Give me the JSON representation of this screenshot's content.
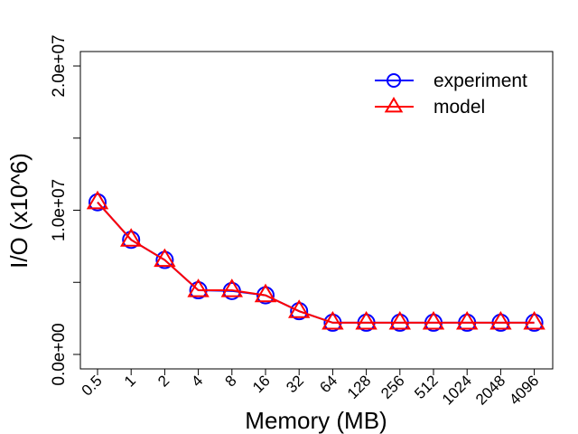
{
  "chart_data": {
    "type": "line",
    "xlabel": "Memory (MB)",
    "ylabel": "I/O (x10^6)",
    "categories": [
      "0.5",
      "1",
      "2",
      "4",
      "8",
      "16",
      "32",
      "64",
      "128",
      "256",
      "512",
      "1024",
      "2048",
      "4096"
    ],
    "ylim": [
      -1000000,
      21000000
    ],
    "yticks": [
      0,
      5000000,
      10000000,
      15000000,
      20000000
    ],
    "ytick_labels": [
      "0.0e+00",
      "",
      "1.0e+07",
      "",
      "2.0e+07"
    ],
    "grid": false,
    "legend_position": "top-right",
    "series": [
      {
        "name": "experiment",
        "color": "#0000ff",
        "marker": "circle",
        "values": [
          10550000,
          7950000,
          6550000,
          4450000,
          4400000,
          4100000,
          3000000,
          2200000,
          2200000,
          2200000,
          2200000,
          2200000,
          2200000,
          2200000
        ]
      },
      {
        "name": "model",
        "color": "#ff0000",
        "marker": "triangle",
        "values": [
          10550000,
          7950000,
          6550000,
          4450000,
          4450000,
          4100000,
          3000000,
          2200000,
          2200000,
          2200000,
          2200000,
          2200000,
          2200000,
          2200000
        ]
      }
    ]
  }
}
